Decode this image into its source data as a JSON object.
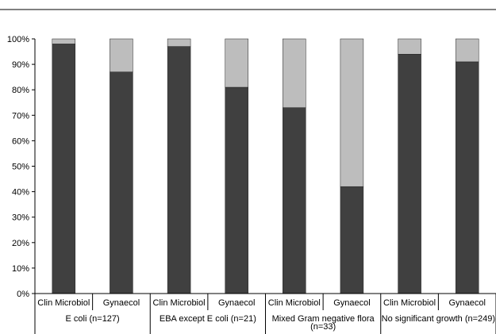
{
  "chart_data": {
    "type": "bar",
    "stacked": true,
    "percent_stacked": true,
    "title": "",
    "xlabel": "",
    "ylabel": "",
    "ylim": [
      0,
      100
    ],
    "y_ticks": [
      "0%",
      "10%",
      "20%",
      "30%",
      "40%",
      "50%",
      "60%",
      "70%",
      "80%",
      "90%",
      "100%"
    ],
    "grid": false,
    "legend": "none",
    "groups": [
      {
        "label": "E coli (n=127)",
        "label_lines": [
          "E coli (n=127)"
        ]
      },
      {
        "label": "EBA except E coli (n=21)",
        "label_lines": [
          "EBA except E coli (n=21)"
        ]
      },
      {
        "label": "Mixed Gram negative flora (n=33)",
        "label_lines": [
          "Mixed Gram negative flora",
          "(n=33)"
        ]
      },
      {
        "label": "No significant growth (n=249)",
        "label_lines": [
          "No significant growth (n=249)"
        ]
      }
    ],
    "categories": [
      "Clin Microbiol",
      "Gynaecol",
      "Clin Microbiol",
      "Gynaecol",
      "Clin Microbiol",
      "Gynaecol",
      "Clin Microbiol",
      "Gynaecol"
    ],
    "series": [
      {
        "color": "#404040",
        "values": [
          98,
          87,
          97,
          81,
          73,
          42,
          94,
          91
        ]
      },
      {
        "color": "#bdbdbd",
        "values": [
          2,
          13,
          3,
          19,
          27,
          58,
          6,
          9
        ]
      }
    ]
  }
}
